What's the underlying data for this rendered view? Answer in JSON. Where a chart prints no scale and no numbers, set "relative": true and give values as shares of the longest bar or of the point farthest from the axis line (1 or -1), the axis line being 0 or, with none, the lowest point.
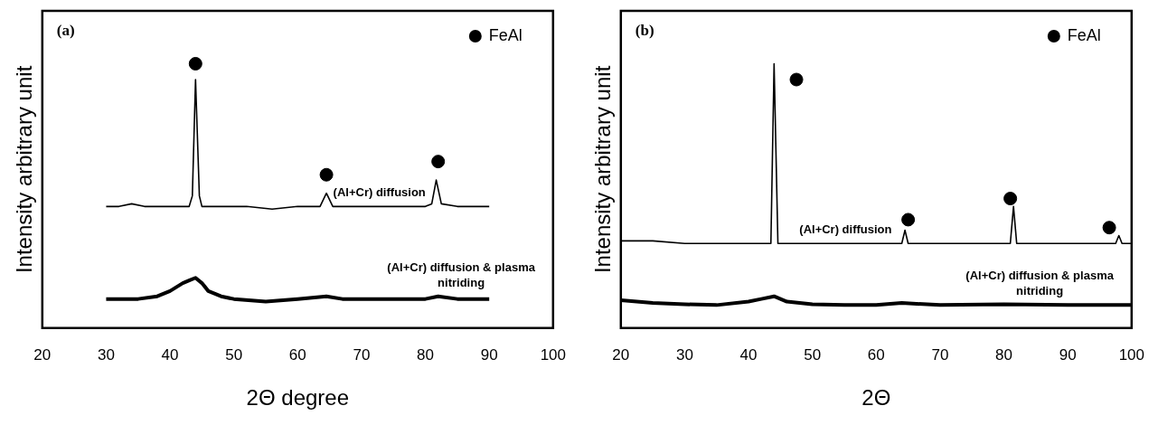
{
  "chart_data": [
    {
      "type": "line",
      "xlabel": "2Θ degree",
      "ylabel": "Intensity arbitrary unit",
      "relative": true,
      "xlim": [
        20,
        100
      ],
      "xticks": [
        20,
        30,
        40,
        50,
        60,
        70,
        80,
        90,
        100
      ],
      "grid": false,
      "legend": "top right",
      "annotations": [
        "(a)"
      ],
      "series": [
        {
          "name": "(Al+Cr) diffusion",
          "color": "#000000",
          "x": [
            30,
            32,
            34,
            36,
            38,
            40,
            42,
            43,
            43.5,
            44,
            44.6,
            45,
            48,
            52,
            56,
            60,
            63.5,
            64.5,
            65.5,
            70,
            75,
            80,
            81,
            81.7,
            82.5,
            85,
            90
          ],
          "values": [
            0.46,
            0.46,
            0.47,
            0.46,
            0.46,
            0.46,
            0.46,
            0.46,
            0.5,
            0.94,
            0.5,
            0.46,
            0.46,
            0.46,
            0.45,
            0.46,
            0.46,
            0.51,
            0.46,
            0.46,
            0.46,
            0.46,
            0.47,
            0.56,
            0.47,
            0.46,
            0.46
          ]
        },
        {
          "name": "(Al+Cr) diffusion & plasma nitriding",
          "color": "#000000",
          "x": [
            30,
            35,
            38,
            40,
            42,
            43,
            44,
            45,
            46,
            48,
            50,
            55,
            60,
            64.5,
            67,
            70,
            75,
            80,
            82,
            85,
            90
          ],
          "values": [
            0.11,
            0.11,
            0.12,
            0.14,
            0.17,
            0.18,
            0.19,
            0.17,
            0.14,
            0.12,
            0.11,
            0.1,
            0.11,
            0.12,
            0.11,
            0.11,
            0.11,
            0.11,
            0.12,
            0.11,
            0.11
          ]
        },
        {
          "name": "FeAl",
          "type": "scatter",
          "color": "#000000",
          "marker": "circle",
          "x": [
            44,
            64.5,
            82
          ],
          "values": [
            1,
            0.58,
            0.63
          ]
        }
      ]
    },
    {
      "type": "line",
      "xlabel": "2Θ",
      "ylabel": "Intensity arbitrary unit",
      "relative": true,
      "xlim": [
        20,
        100
      ],
      "xticks": [
        20,
        30,
        40,
        50,
        60,
        70,
        80,
        90,
        100
      ],
      "grid": false,
      "legend": "top right",
      "annotations": [
        "(b)"
      ],
      "series": [
        {
          "name": "(Al+Cr) diffusion",
          "color": "#000000",
          "x": [
            20,
            25,
            30,
            35,
            40,
            43.5,
            44,
            44.6,
            50,
            55,
            60,
            64,
            64.5,
            65,
            70,
            75,
            81,
            81.5,
            82,
            90,
            97.5,
            98,
            98.5,
            100
          ],
          "values": [
            0.33,
            0.33,
            0.32,
            0.32,
            0.32,
            0.32,
            1,
            0.32,
            0.32,
            0.32,
            0.32,
            0.32,
            0.37,
            0.32,
            0.32,
            0.32,
            0.32,
            0.46,
            0.32,
            0.32,
            0.32,
            0.35,
            0.32,
            0.32
          ]
        },
        {
          "name": "(Al+Cr) diffusion & plasma nitriding",
          "color": "#000000",
          "x": [
            20,
            25,
            30,
            35,
            40,
            42,
            44,
            46,
            50,
            55,
            60,
            64,
            70,
            80,
            90,
            100
          ],
          "values": [
            0.105,
            0.095,
            0.09,
            0.087,
            0.1,
            0.11,
            0.12,
            0.1,
            0.09,
            0.087,
            0.087,
            0.095,
            0.087,
            0.09,
            0.087,
            0.087
          ]
        },
        {
          "name": "FeAl",
          "type": "scatter",
          "color": "#000000",
          "marker": "circle",
          "x": [
            47.5,
            65,
            81,
            96.5
          ],
          "values": [
            0.94,
            0.41,
            0.49,
            0.38
          ]
        }
      ]
    }
  ]
}
